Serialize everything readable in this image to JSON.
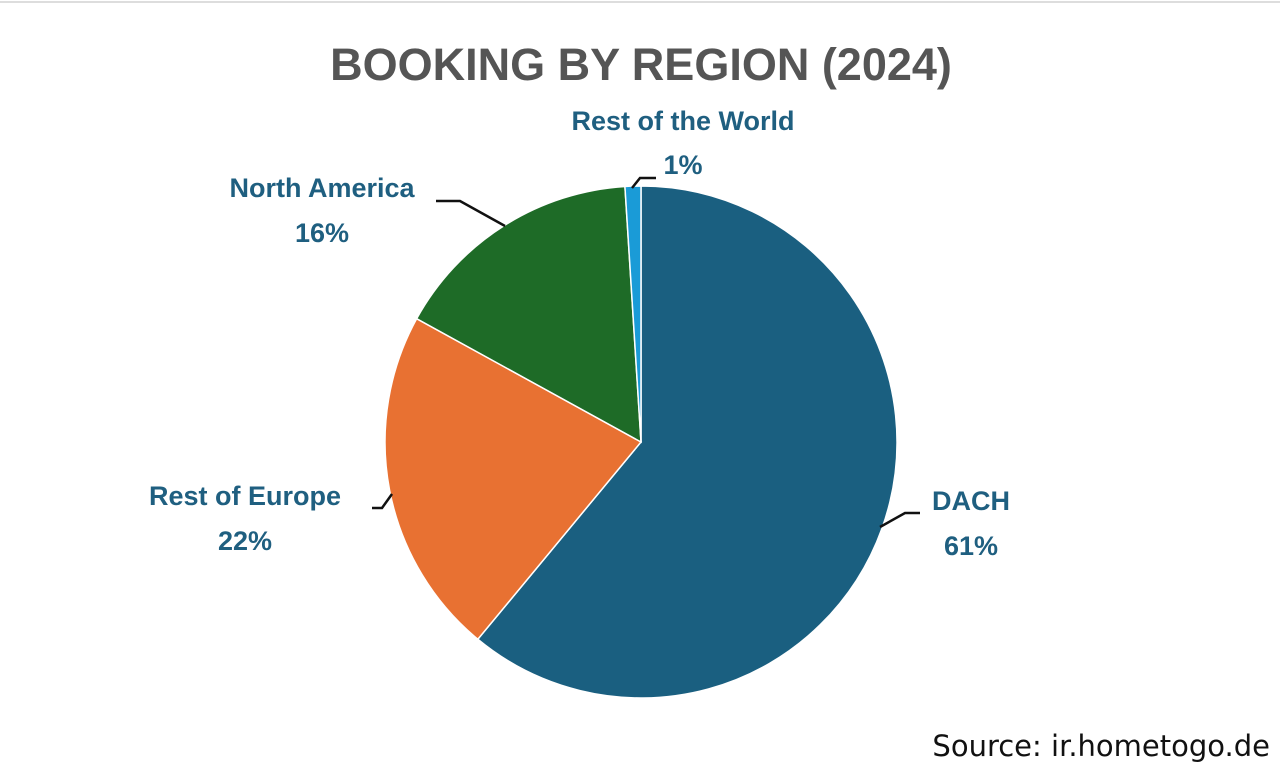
{
  "chart_data": {
    "type": "pie",
    "title": "BOOKING BY REGION (2024)",
    "categories": [
      "DACH",
      "Rest of Europe",
      "North America",
      "Rest of the World"
    ],
    "values": [
      61,
      22,
      16,
      1
    ],
    "value_labels": [
      "61%",
      "22%",
      "16%",
      "1%"
    ],
    "colors": [
      "#1a5f80",
      "#e87132",
      "#1e6b27",
      "#1a9bd7"
    ],
    "source": "Source: ir.hometogo.de"
  }
}
